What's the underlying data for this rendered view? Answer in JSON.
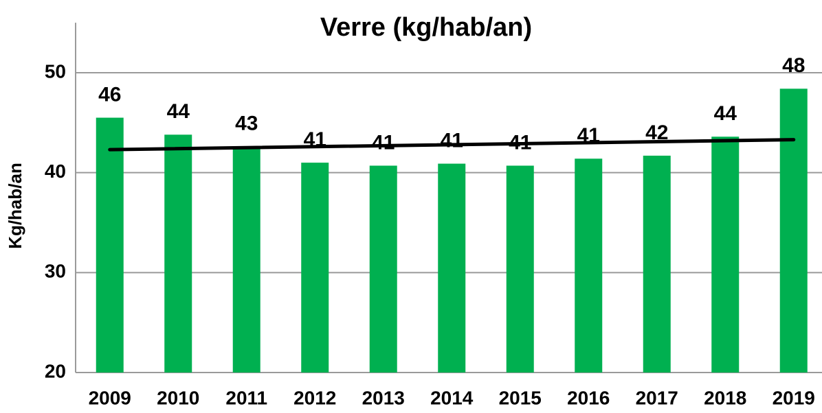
{
  "chart_data": {
    "type": "bar",
    "title": "Verre (kg/hab/an)",
    "y_label": "Kg/hab/an",
    "categories": [
      "2009",
      "2010",
      "2011",
      "2012",
      "2013",
      "2014",
      "2015",
      "2016",
      "2017",
      "2018",
      "2019"
    ],
    "values": [
      45.5,
      43.8,
      42.6,
      41.0,
      40.7,
      40.9,
      40.7,
      41.4,
      41.7,
      43.6,
      48.4
    ],
    "value_labels": [
      "46",
      "44",
      "43",
      "41",
      "41",
      "41",
      "41",
      "41",
      "42",
      "44",
      "48"
    ],
    "color": "#00b050",
    "trendline": {
      "color": "#000000",
      "values": [
        42.3,
        43.3
      ]
    },
    "ylim": [
      20,
      55
    ],
    "yticks": [
      20,
      30,
      40,
      50
    ],
    "grid": true
  }
}
